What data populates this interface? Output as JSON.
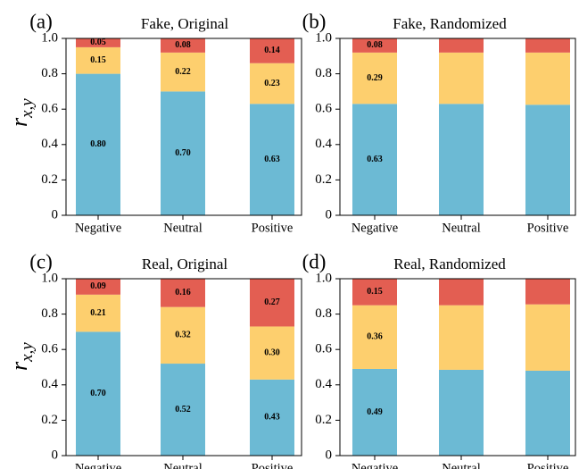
{
  "figure": {
    "ylabel_main": "r",
    "ylabel_sub": "x,y"
  },
  "chart_data": [
    {
      "type": "bar",
      "stacked": true,
      "panel_label": "(a)",
      "title": "Fake, Original",
      "categories": [
        "Negative",
        "Neutral",
        "Positive"
      ],
      "ylim": [
        0,
        1.0
      ],
      "yticks": [
        0,
        0.2,
        0.4,
        0.6,
        0.8,
        1.0
      ],
      "ytick_labels": [
        "0",
        "0.2",
        "0.4",
        "0.6",
        "0.8",
        "1.0"
      ],
      "series": [
        {
          "color": "#6cbad4",
          "values": [
            0.8,
            0.7,
            0.63
          ],
          "labels": [
            "0.80",
            "0.70",
            "0.63"
          ]
        },
        {
          "color": "#fdcf6e",
          "values": [
            0.15,
            0.22,
            0.23
          ],
          "labels": [
            "0.15",
            "0.22",
            "0.23"
          ]
        },
        {
          "color": "#e35e52",
          "values": [
            0.05,
            0.08,
            0.14
          ],
          "labels": [
            "0.05",
            "0.08",
            "0.14"
          ]
        }
      ]
    },
    {
      "type": "bar",
      "stacked": true,
      "panel_label": "(b)",
      "title": "Fake, Randomized",
      "categories": [
        "Negative",
        "Neutral",
        "Positive"
      ],
      "ylim": [
        0,
        1.0
      ],
      "yticks": [
        0,
        0.2,
        0.4,
        0.6,
        0.8,
        1.0
      ],
      "ytick_labels": [
        "0",
        "0.2",
        "0.4",
        "0.6",
        "0.8",
        "1.0"
      ],
      "series": [
        {
          "color": "#6cbad4",
          "values": [
            0.63,
            0.63,
            0.625
          ],
          "labels": [
            "0.63",
            "",
            ""
          ]
        },
        {
          "color": "#fdcf6e",
          "values": [
            0.29,
            0.29,
            0.295
          ],
          "labels": [
            "0.29",
            "",
            ""
          ]
        },
        {
          "color": "#e35e52",
          "values": [
            0.08,
            0.08,
            0.08
          ],
          "labels": [
            "0.08",
            "",
            ""
          ]
        }
      ]
    },
    {
      "type": "bar",
      "stacked": true,
      "panel_label": "(c)",
      "title": "Real, Original",
      "categories": [
        "Negative",
        "Neutral",
        "Positive"
      ],
      "ylim": [
        0,
        1.0
      ],
      "yticks": [
        0,
        0.2,
        0.4,
        0.6,
        0.8,
        1.0
      ],
      "ytick_labels": [
        "0",
        "0.2",
        "0.4",
        "0.6",
        "0.8",
        "1.0"
      ],
      "series": [
        {
          "color": "#6cbad4",
          "values": [
            0.7,
            0.52,
            0.43
          ],
          "labels": [
            "0.70",
            "0.52",
            "0.43"
          ]
        },
        {
          "color": "#fdcf6e",
          "values": [
            0.21,
            0.32,
            0.3
          ],
          "labels": [
            "0.21",
            "0.32",
            "0.30"
          ]
        },
        {
          "color": "#e35e52",
          "values": [
            0.09,
            0.16,
            0.27
          ],
          "labels": [
            "0.09",
            "0.16",
            "0.27"
          ]
        }
      ]
    },
    {
      "type": "bar",
      "stacked": true,
      "panel_label": "(d)",
      "title": "Real, Randomized",
      "categories": [
        "Negative",
        "Neutral",
        "Positive"
      ],
      "ylim": [
        0,
        1.0
      ],
      "yticks": [
        0,
        0.2,
        0.4,
        0.6,
        0.8,
        1.0
      ],
      "ytick_labels": [
        "0",
        "0.2",
        "0.4",
        "0.6",
        "0.8",
        "1.0"
      ],
      "series": [
        {
          "color": "#6cbad4",
          "values": [
            0.49,
            0.485,
            0.48
          ],
          "labels": [
            "0.49",
            "",
            ""
          ]
        },
        {
          "color": "#fdcf6e",
          "values": [
            0.36,
            0.365,
            0.375
          ],
          "labels": [
            "0.36",
            "",
            ""
          ]
        },
        {
          "color": "#e35e52",
          "values": [
            0.15,
            0.15,
            0.145
          ],
          "labels": [
            "0.15",
            "",
            ""
          ]
        }
      ]
    }
  ]
}
